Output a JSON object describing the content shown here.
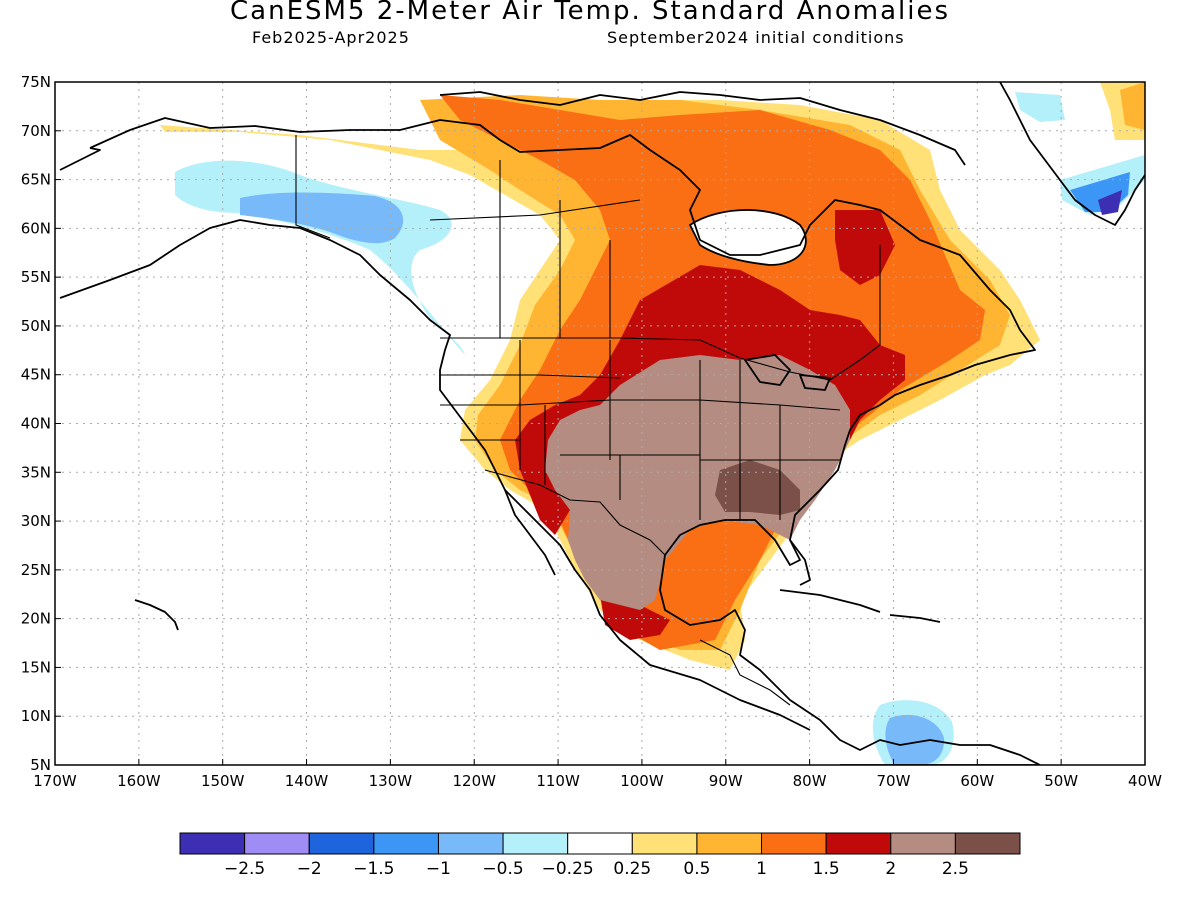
{
  "header": {
    "title": "CanESM5 2-Meter Air Temp. Standard Anomalies",
    "period": "Feb2025-Apr2025",
    "init": "September2024 initial conditions"
  },
  "axes": {
    "lat_labels": [
      "75N",
      "70N",
      "65N",
      "60N",
      "55N",
      "50N",
      "45N",
      "40N",
      "35N",
      "30N",
      "25N",
      "20N",
      "15N",
      "10N",
      "5N"
    ],
    "lon_labels": [
      "170W",
      "160W",
      "150W",
      "140W",
      "130W",
      "120W",
      "110W",
      "100W",
      "90W",
      "80W",
      "70W",
      "60W",
      "50W",
      "40W"
    ]
  },
  "colorbar": {
    "colors": [
      "#3c2fb4",
      "#a08cf5",
      "#1e64dc",
      "#3c96f5",
      "#78b9fa",
      "#b4f0fa",
      "#ffffff",
      "#ffe178",
      "#ffb432",
      "#fa6e14",
      "#c00a0a",
      "#b48c82",
      "#7a5048"
    ],
    "labels": [
      "−2.5",
      "−2",
      "−1.5",
      "−1",
      "−0.5",
      "−0.25",
      "0.25",
      "0.5",
      "1",
      "1.5",
      "2",
      "2.5"
    ]
  },
  "legend_colors": {
    "land_outline": "#000000",
    "grid": "#aaaaaa"
  }
}
